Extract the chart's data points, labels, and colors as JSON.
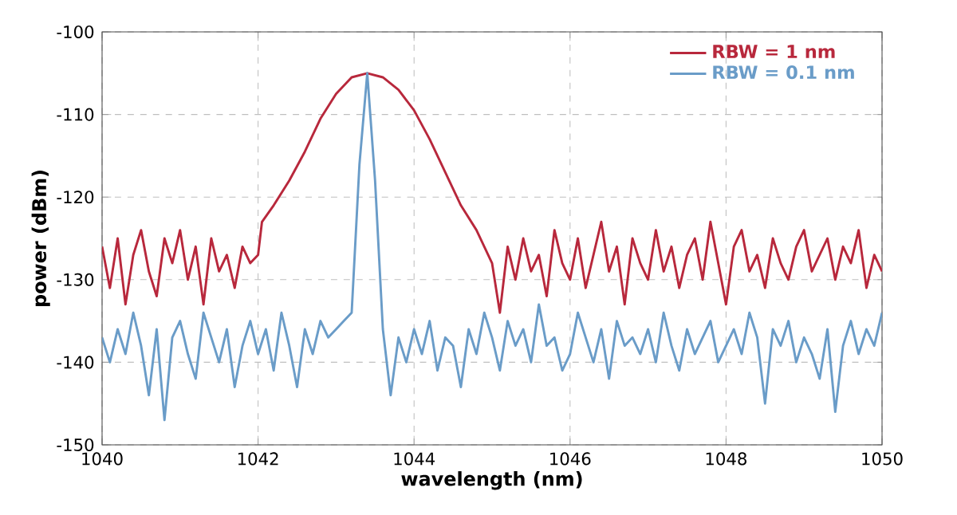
{
  "chart_data": {
    "type": "line",
    "xlabel": "wavelength (nm)",
    "ylabel": "power (dBm)",
    "xlim": [
      1040,
      1050
    ],
    "ylim": [
      -150,
      -100
    ],
    "xticks": [
      1040,
      1042,
      1044,
      1046,
      1048,
      1050
    ],
    "yticks": [
      -150,
      -140,
      -130,
      -120,
      -110,
      -100
    ],
    "grid": true,
    "legend": "top right",
    "marker": "none",
    "line_style": "solid",
    "series": [
      {
        "name": "RBW = 1 nm",
        "color": "#b8283c",
        "x": [
          1040,
          1040.1,
          1040.2,
          1040.3,
          1040.4,
          1040.5,
          1040.6,
          1040.7,
          1040.8,
          1040.9,
          1041,
          1041.1,
          1041.2,
          1041.3,
          1041.4,
          1041.5,
          1041.6,
          1041.7,
          1041.8,
          1041.9,
          1042,
          1042.05,
          1042.2,
          1042.4,
          1042.6,
          1042.8,
          1043,
          1043.2,
          1043.4,
          1043.6,
          1043.8,
          1044,
          1044.2,
          1044.4,
          1044.6,
          1044.8,
          1045,
          1045.1,
          1045.2,
          1045.3,
          1045.4,
          1045.5,
          1045.6,
          1045.7,
          1045.8,
          1045.9,
          1046,
          1046.1,
          1046.2,
          1046.3,
          1046.4,
          1046.5,
          1046.6,
          1046.7,
          1046.8,
          1046.9,
          1047,
          1047.1,
          1047.2,
          1047.3,
          1047.4,
          1047.5,
          1047.6,
          1047.7,
          1047.8,
          1047.9,
          1048,
          1048.1,
          1048.2,
          1048.3,
          1048.4,
          1048.5,
          1048.6,
          1048.7,
          1048.8,
          1048.9,
          1049,
          1049.1,
          1049.2,
          1049.3,
          1049.4,
          1049.5,
          1049.6,
          1049.7,
          1049.8,
          1049.9,
          1050
        ],
        "values": [
          -126,
          -131,
          -125,
          -133,
          -127,
          -124,
          -129,
          -132,
          -125,
          -128,
          -124,
          -130,
          -126,
          -133,
          -125,
          -129,
          -127,
          -131,
          -126,
          -128,
          -127,
          -123,
          -121,
          -118,
          -114.5,
          -110.5,
          -107.5,
          -105.5,
          -105,
          -105.5,
          -107,
          -109.5,
          -113,
          -117,
          -121,
          -124,
          -128,
          -134,
          -126,
          -130,
          -125,
          -129,
          -127,
          -132,
          -124,
          -128,
          -130,
          -125,
          -131,
          -127,
          -123,
          -129,
          -126,
          -133,
          -125,
          -128,
          -130,
          -124,
          -129,
          -126,
          -131,
          -127,
          -125,
          -130,
          -123,
          -128,
          -133,
          -126,
          -124,
          -129,
          -127,
          -131,
          -125,
          -128,
          -130,
          -126,
          -124,
          -129,
          -127,
          -125,
          -130,
          -126,
          -128,
          -124,
          -131,
          -127,
          -129
        ]
      },
      {
        "name": "RBW = 0.1 nm",
        "color": "#6a9cc8",
        "x": [
          1040,
          1040.1,
          1040.2,
          1040.3,
          1040.4,
          1040.5,
          1040.6,
          1040.7,
          1040.8,
          1040.9,
          1041,
          1041.1,
          1041.2,
          1041.3,
          1041.4,
          1041.5,
          1041.6,
          1041.7,
          1041.8,
          1041.9,
          1042,
          1042.1,
          1042.2,
          1042.3,
          1042.4,
          1042.5,
          1042.6,
          1042.7,
          1042.8,
          1042.9,
          1043,
          1043.1,
          1043.2,
          1043.3,
          1043.4,
          1043.5,
          1043.6,
          1043.7,
          1043.8,
          1043.9,
          1044,
          1044.1,
          1044.2,
          1044.3,
          1044.4,
          1044.5,
          1044.6,
          1044.7,
          1044.8,
          1044.9,
          1045,
          1045.1,
          1045.2,
          1045.3,
          1045.4,
          1045.5,
          1045.6,
          1045.7,
          1045.8,
          1045.9,
          1046,
          1046.1,
          1046.2,
          1046.3,
          1046.4,
          1046.5,
          1046.6,
          1046.7,
          1046.8,
          1046.9,
          1047,
          1047.1,
          1047.2,
          1047.3,
          1047.4,
          1047.5,
          1047.6,
          1047.7,
          1047.8,
          1047.9,
          1048,
          1048.1,
          1048.2,
          1048.3,
          1048.4,
          1048.5,
          1048.6,
          1048.7,
          1048.8,
          1048.9,
          1049,
          1049.1,
          1049.2,
          1049.3,
          1049.4,
          1049.5,
          1049.6,
          1049.7,
          1049.8,
          1049.9,
          1050
        ],
        "values": [
          -137,
          -140,
          -136,
          -139,
          -134,
          -138,
          -144,
          -136,
          -147,
          -137,
          -135,
          -139,
          -142,
          -134,
          -137,
          -140,
          -136,
          -143,
          -138,
          -135,
          -139,
          -136,
          -141,
          -134,
          -138,
          -143,
          -136,
          -139,
          -135,
          -137,
          -136,
          -135,
          -134,
          -116,
          -105,
          -118,
          -136,
          -144,
          -137,
          -140,
          -136,
          -139,
          -135,
          -141,
          -137,
          -138,
          -143,
          -136,
          -139,
          -134,
          -137,
          -141,
          -135,
          -138,
          -136,
          -140,
          -133,
          -138,
          -137,
          -141,
          -139,
          -134,
          -137,
          -140,
          -136,
          -142,
          -135,
          -138,
          -137,
          -139,
          -136,
          -140,
          -134,
          -138,
          -141,
          -136,
          -139,
          -137,
          -135,
          -140,
          -138,
          -136,
          -139,
          -134,
          -137,
          -145,
          -136,
          -138,
          -135,
          -140,
          -137,
          -139,
          -142,
          -136,
          -146,
          -138,
          -135,
          -139,
          -136,
          -138,
          -134
        ]
      }
    ]
  }
}
